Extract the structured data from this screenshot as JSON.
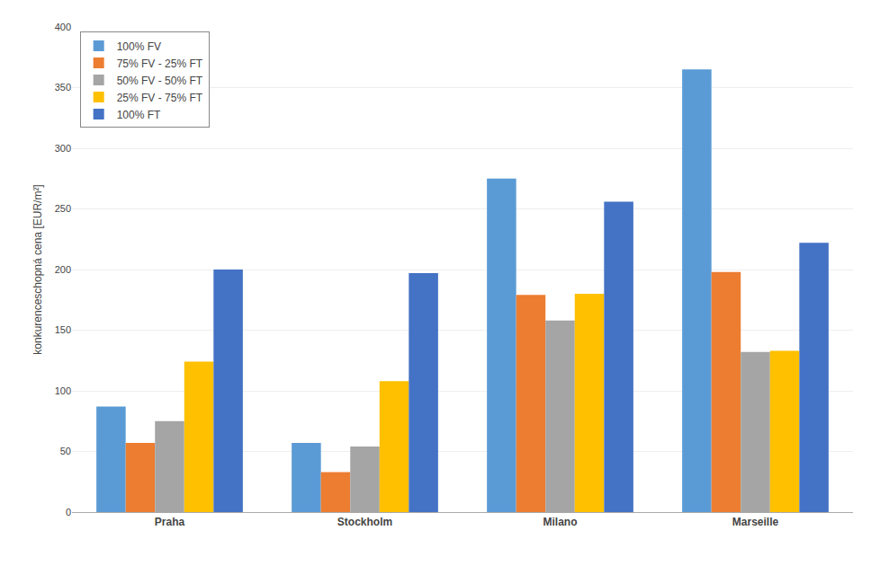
{
  "chart_data": {
    "type": "bar",
    "categories": [
      "Praha",
      "Stockholm",
      "Milano",
      "Marseille"
    ],
    "series": [
      {
        "name": "100% FV",
        "color": "#5B9BD5",
        "values": [
          87,
          57,
          275,
          365
        ]
      },
      {
        "name": "75% FV - 25% FT",
        "color": "#ED7D31",
        "values": [
          57,
          33,
          179,
          198
        ]
      },
      {
        "name": "50% FV - 50% FT",
        "color": "#A5A5A5",
        "values": [
          75,
          54,
          158,
          132
        ]
      },
      {
        "name": "25% FV - 75% FT",
        "color": "#FFC000",
        "values": [
          124,
          108,
          180,
          133
        ]
      },
      {
        "name": "100% FT",
        "color": "#4472C4",
        "values": [
          200,
          197,
          256,
          222
        ]
      }
    ],
    "ylabel": "konkurenceschopná cena [EUR/m²]",
    "ylim": [
      0,
      400
    ],
    "yticks": [
      0,
      50,
      100,
      150,
      200,
      250,
      300,
      350,
      400
    ],
    "grid": true,
    "legend": "upper left"
  }
}
